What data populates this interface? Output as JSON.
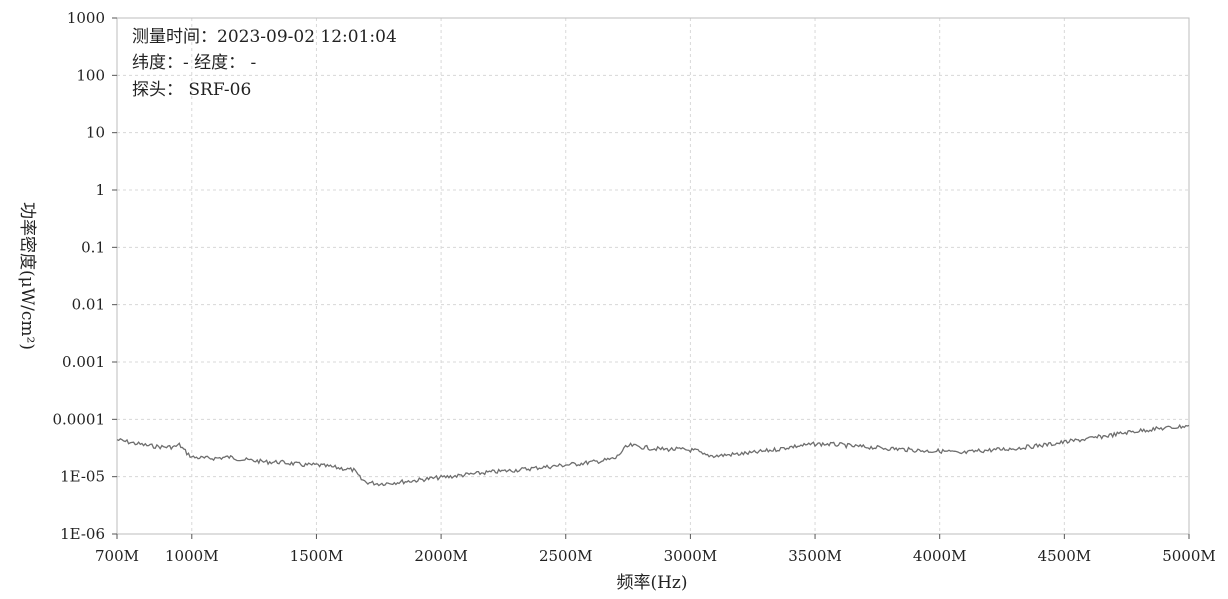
{
  "info": {
    "time_line": "测量时间：2023-09-02 12:01:04",
    "location_line": "纬度：- 经度：  -",
    "probe_line": "探头： SRF-06"
  },
  "chart_data": {
    "type": "line",
    "title": "",
    "xlabel": "频率(Hz)",
    "ylabel": "功率密度(μW/cm²)",
    "x_unit": "MHz",
    "xlim": [
      700,
      5000
    ],
    "ylim": [
      1e-06,
      1000
    ],
    "y_scale": "log",
    "grid": true,
    "x_tick_values": [
      700,
      1000,
      1500,
      2000,
      2500,
      3000,
      3500,
      4000,
      4500,
      5000
    ],
    "x_tick_labels": [
      "700M",
      "1000M",
      "1500M",
      "2000M",
      "2500M",
      "3000M",
      "3500M",
      "4000M",
      "4500M",
      "5000M"
    ],
    "y_tick_values": [
      1000,
      100,
      10,
      1,
      0.1,
      0.01,
      0.001,
      0.0001,
      1e-05,
      1e-06
    ],
    "y_tick_labels": [
      "1000",
      "100",
      "10",
      "1",
      "0.1",
      "0.01",
      "0.001",
      "0.0001",
      "1E-05",
      "1E-06"
    ],
    "colors": {
      "series": "#6e6e6e",
      "grid": "#d8d8d8",
      "frame": "#bdbdbd"
    },
    "series": [
      {
        "x": [
          700,
          760,
          820,
          880,
          930,
          950,
          980,
          1000,
          1050,
          1100,
          1150,
          1200,
          1250,
          1300,
          1350,
          1400,
          1450,
          1500,
          1550,
          1600,
          1650,
          1680,
          1700,
          1750,
          1800,
          1850,
          1900,
          1950,
          2000,
          2050,
          2100,
          2150,
          2200,
          2250,
          2300,
          2350,
          2400,
          2450,
          2500,
          2550,
          2600,
          2650,
          2700,
          2720,
          2740,
          2760,
          2800,
          2850,
          2900,
          2950,
          3000,
          3030,
          3050,
          3100,
          3150,
          3200,
          3250,
          3300,
          3350,
          3400,
          3450,
          3500,
          3550,
          3600,
          3650,
          3700,
          3750,
          3800,
          3850,
          3900,
          3950,
          4000,
          4050,
          4080,
          4100,
          4150,
          4200,
          4250,
          4300,
          4350,
          4400,
          4450,
          4500,
          4550,
          4600,
          4650,
          4700,
          4750,
          4800,
          4850,
          4900,
          4950,
          5000
        ],
        "y": [
          4.4e-05,
          3.9e-05,
          3.5e-05,
          3.3e-05,
          3.3e-05,
          3.6e-05,
          2.6e-05,
          2.2e-05,
          2.1e-05,
          2.1e-05,
          2.2e-05,
          2e-05,
          1.9e-05,
          1.8e-05,
          1.8e-05,
          1.7e-05,
          1.6e-05,
          1.6e-05,
          1.5e-05,
          1.4e-05,
          1.3e-05,
          9e-06,
          8e-06,
          7.5e-06,
          7.8e-06,
          8.2e-06,
          8.6e-06,
          9.2e-06,
          9.7e-06,
          1.02e-05,
          1.08e-05,
          1.14e-05,
          1.2e-05,
          1.25e-05,
          1.3e-05,
          1.37e-05,
          1.45e-05,
          1.52e-05,
          1.6e-05,
          1.68e-05,
          1.78e-05,
          1.9e-05,
          2.1e-05,
          2.6e-05,
          3.2e-05,
          3.5e-05,
          3.3e-05,
          3.1e-05,
          3e-05,
          3e-05,
          2.9e-05,
          2.8e-05,
          2.4e-05,
          2.3e-05,
          2.4e-05,
          2.5e-05,
          2.6e-05,
          2.8e-05,
          3e-05,
          3.3e-05,
          3.5e-05,
          3.7e-05,
          3.7e-05,
          3.6e-05,
          3.4e-05,
          3.3e-05,
          3.2e-05,
          3.1e-05,
          3e-05,
          2.9e-05,
          2.8e-05,
          2.8e-05,
          2.7e-05,
          2.5e-05,
          2.6e-05,
          2.8e-05,
          2.9e-05,
          3e-05,
          3.1e-05,
          3.3e-05,
          3.5e-05,
          3.7e-05,
          4e-05,
          4.3e-05,
          4.6e-05,
          5e-05,
          5.4e-05,
          5.9e-05,
          6.3e-05,
          6.7e-05,
          7e-05,
          7.3e-05,
          7.8e-05
        ]
      }
    ]
  }
}
